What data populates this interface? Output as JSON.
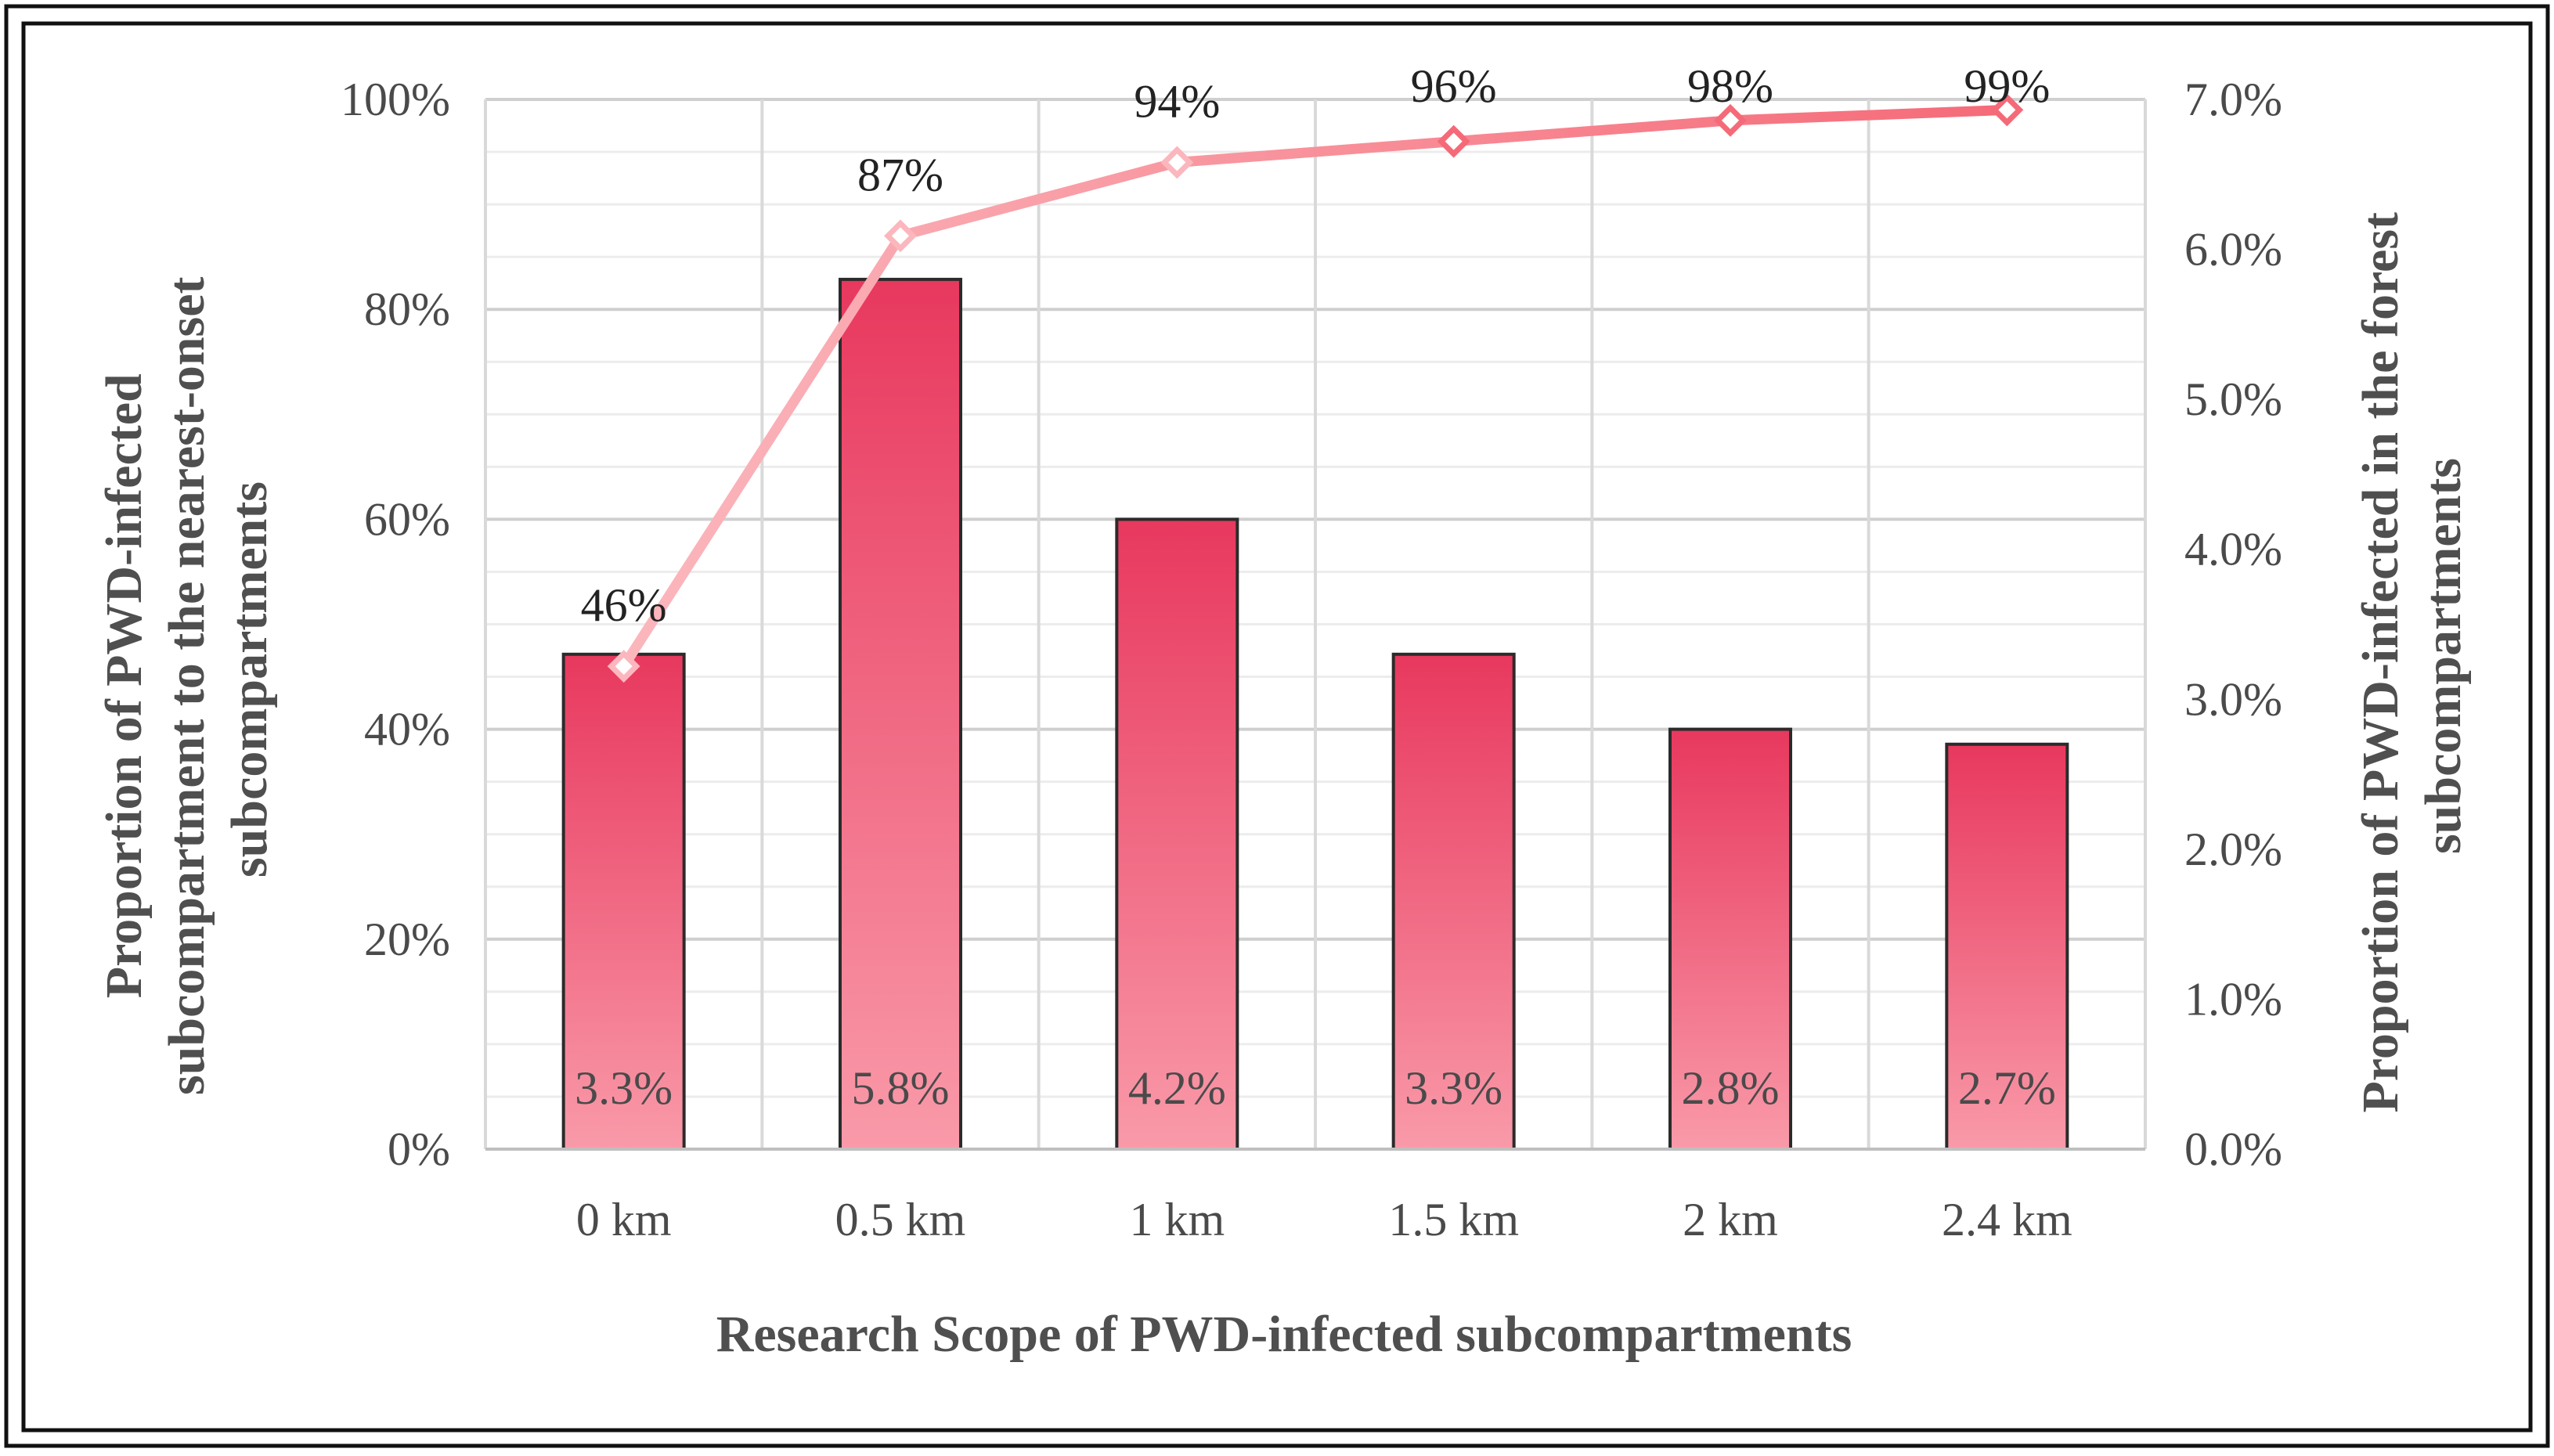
{
  "chart_data": {
    "type": "bar+line",
    "title": "",
    "categories": [
      "0 km",
      "0.5 km",
      "1 km",
      "1.5 km",
      "2 km",
      "2.4 km"
    ],
    "series": [
      {
        "name": "Proportion of PWD-infected in the forest subcompartments",
        "kind": "bar",
        "axis": "right",
        "values": [
          3.3,
          5.8,
          4.2,
          3.3,
          2.8,
          2.7
        ],
        "labels": [
          "3.3%",
          "5.8%",
          "4.2%",
          "3.3%",
          "2.8%",
          "2.7%"
        ]
      },
      {
        "name": "Proportion of PWD-infected subcompartment to the nearest-onset subcompartments",
        "kind": "line",
        "axis": "left",
        "values": [
          46,
          87,
          94,
          96,
          98,
          99
        ],
        "labels": [
          "46%",
          "87%",
          "94%",
          "96%",
          "98%",
          "99%"
        ]
      }
    ],
    "xlabel": "Research Scope of PWD-infected subcompartments",
    "ylabel_left": [
      "Proportion of PWD-infected",
      "subcompartment to the nearest-onset",
      "subcompartments"
    ],
    "ylabel_right": [
      "Proportion of PWD-infected in the forest",
      "subcompartments"
    ],
    "ylim_left": [
      0,
      100
    ],
    "ylim_right": [
      0,
      7
    ],
    "left_ticks": [
      "0%",
      "20%",
      "40%",
      "60%",
      "80%",
      "100%"
    ],
    "right_ticks": [
      "0.0%",
      "1.0%",
      "2.0%",
      "3.0%",
      "4.0%",
      "5.0%",
      "6.0%",
      "7.0%"
    ],
    "grid": true,
    "colors": {
      "bar_top": "#e8385e",
      "bar_bottom": "#f99aa9",
      "bar_edge": "#2b2b2b",
      "line_light": "#fbb7bd",
      "line_dark": "#f56a78",
      "marker_fill": "#ffffff",
      "grid": "#d9d9d9",
      "axis_text": "#4a4a4a",
      "frame": "#111111"
    }
  }
}
